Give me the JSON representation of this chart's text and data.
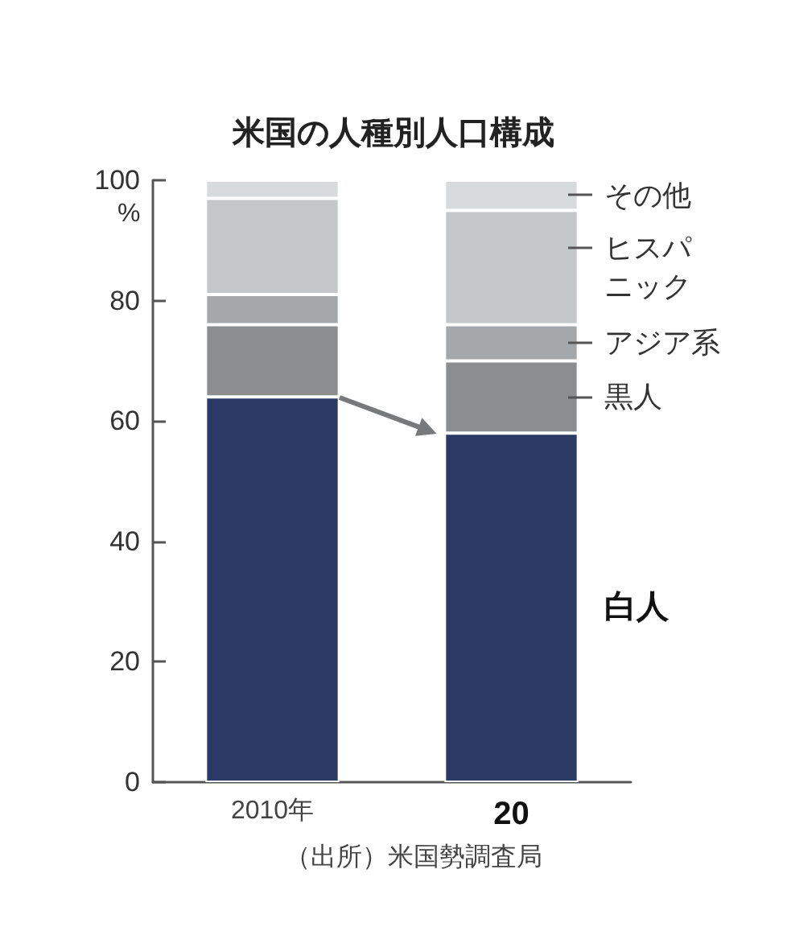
{
  "chart_data": {
    "type": "bar",
    "title": "米国の人種別人口構成",
    "ylabel": "%",
    "categories": [
      "2010年",
      "20"
    ],
    "stacked": true,
    "series": [
      {
        "name": "白人",
        "color": "#2c3b66",
        "values": [
          64,
          58
        ]
      },
      {
        "name": "黒人",
        "color": "#8b8d8e",
        "values": [
          12,
          12
        ]
      },
      {
        "name": "アジア系",
        "color": "#a5a8aa",
        "values": [
          5,
          6
        ]
      },
      {
        "name": "ヒスパニック",
        "color": "#c4c7c8",
        "values": [
          16,
          19
        ]
      },
      {
        "name": "その他",
        "color": "#d8dbdb",
        "values": [
          3,
          5
        ]
      }
    ],
    "ylim": [
      0,
      100
    ],
    "yticks": [
      0,
      20,
      40,
      60,
      80,
      100
    ],
    "annotations": [
      "（出所）米国勢調査局"
    ]
  }
}
